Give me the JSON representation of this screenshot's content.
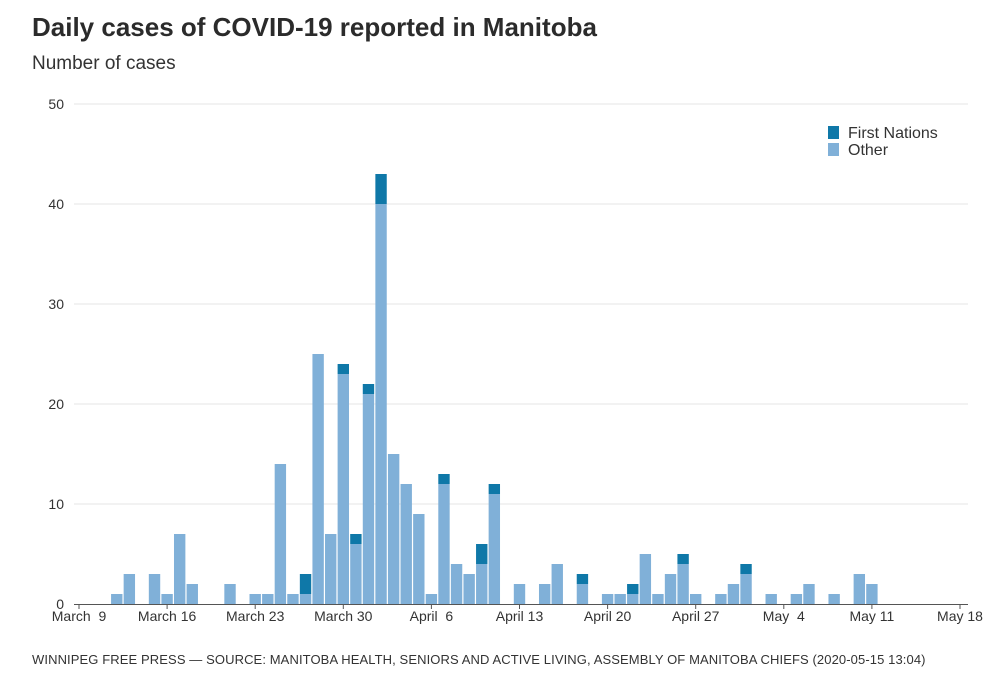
{
  "title": "Daily cases of COVID-19 reported in Manitoba",
  "subtitle": "Number of cases",
  "footer": "WINNIPEG FREE PRESS — SOURCE: MANITOBA HEALTH, SENIORS AND ACTIVE LIVING, ASSEMBLY OF MANITOBA CHIEFS (2020-05-15 13:04)",
  "colors": {
    "first_nations": "#0f78a8",
    "other": "#80b0d8",
    "grid": "#e6e6e6",
    "text": "#333333"
  },
  "chart_data": {
    "type": "bar",
    "stacked": true,
    "title": "Daily cases of COVID-19 reported in Manitoba",
    "ylabel": "Number of cases",
    "ylim": [
      0,
      50
    ],
    "yticks": [
      0,
      10,
      20,
      30,
      40,
      50
    ],
    "x_ticks": [
      {
        "date": "2020-03-09",
        "label": "March  9"
      },
      {
        "date": "2020-03-16",
        "label": "March 16"
      },
      {
        "date": "2020-03-23",
        "label": "March 23"
      },
      {
        "date": "2020-03-30",
        "label": "March 30"
      },
      {
        "date": "2020-04-06",
        "label": "April  6"
      },
      {
        "date": "2020-04-13",
        "label": "April 13"
      },
      {
        "date": "2020-04-20",
        "label": "April 20"
      },
      {
        "date": "2020-04-27",
        "label": "April 27"
      },
      {
        "date": "2020-05-04",
        "label": "May  4"
      },
      {
        "date": "2020-05-11",
        "label": "May 11"
      },
      {
        "date": "2020-05-18",
        "label": "May 18"
      }
    ],
    "legend_position": "top-right",
    "series": [
      {
        "name": "First Nations",
        "data": [
          [
            "2020-03-27",
            2
          ],
          [
            "2020-03-30",
            1
          ],
          [
            "2020-03-31",
            1
          ],
          [
            "2020-04-01",
            1
          ],
          [
            "2020-04-02",
            3
          ],
          [
            "2020-04-07",
            1
          ],
          [
            "2020-04-10",
            2
          ],
          [
            "2020-04-11",
            1
          ],
          [
            "2020-04-18",
            1
          ],
          [
            "2020-04-22",
            1
          ],
          [
            "2020-04-26",
            1
          ],
          [
            "2020-05-01",
            1
          ]
        ]
      },
      {
        "name": "Other",
        "data": [
          [
            "2020-03-12",
            1
          ],
          [
            "2020-03-13",
            3
          ],
          [
            "2020-03-15",
            3
          ],
          [
            "2020-03-16",
            1
          ],
          [
            "2020-03-17",
            7
          ],
          [
            "2020-03-18",
            2
          ],
          [
            "2020-03-21",
            2
          ],
          [
            "2020-03-23",
            1
          ],
          [
            "2020-03-24",
            1
          ],
          [
            "2020-03-25",
            14
          ],
          [
            "2020-03-26",
            1
          ],
          [
            "2020-03-27",
            1
          ],
          [
            "2020-03-28",
            25
          ],
          [
            "2020-03-29",
            7
          ],
          [
            "2020-03-30",
            23
          ],
          [
            "2020-03-31",
            6
          ],
          [
            "2020-04-01",
            21
          ],
          [
            "2020-04-02",
            40
          ],
          [
            "2020-04-03",
            15
          ],
          [
            "2020-04-04",
            12
          ],
          [
            "2020-04-05",
            9
          ],
          [
            "2020-04-06",
            1
          ],
          [
            "2020-04-07",
            12
          ],
          [
            "2020-04-08",
            4
          ],
          [
            "2020-04-09",
            3
          ],
          [
            "2020-04-10",
            4
          ],
          [
            "2020-04-11",
            11
          ],
          [
            "2020-04-13",
            2
          ],
          [
            "2020-04-15",
            2
          ],
          [
            "2020-04-16",
            4
          ],
          [
            "2020-04-18",
            2
          ],
          [
            "2020-04-20",
            1
          ],
          [
            "2020-04-21",
            1
          ],
          [
            "2020-04-22",
            1
          ],
          [
            "2020-04-23",
            5
          ],
          [
            "2020-04-24",
            1
          ],
          [
            "2020-04-25",
            3
          ],
          [
            "2020-04-26",
            4
          ],
          [
            "2020-04-27",
            1
          ],
          [
            "2020-04-29",
            1
          ],
          [
            "2020-04-30",
            2
          ],
          [
            "2020-05-01",
            3
          ],
          [
            "2020-05-03",
            1
          ],
          [
            "2020-05-05",
            1
          ],
          [
            "2020-05-06",
            2
          ],
          [
            "2020-05-08",
            1
          ],
          [
            "2020-05-10",
            3
          ],
          [
            "2020-05-11",
            2
          ]
        ]
      }
    ]
  }
}
